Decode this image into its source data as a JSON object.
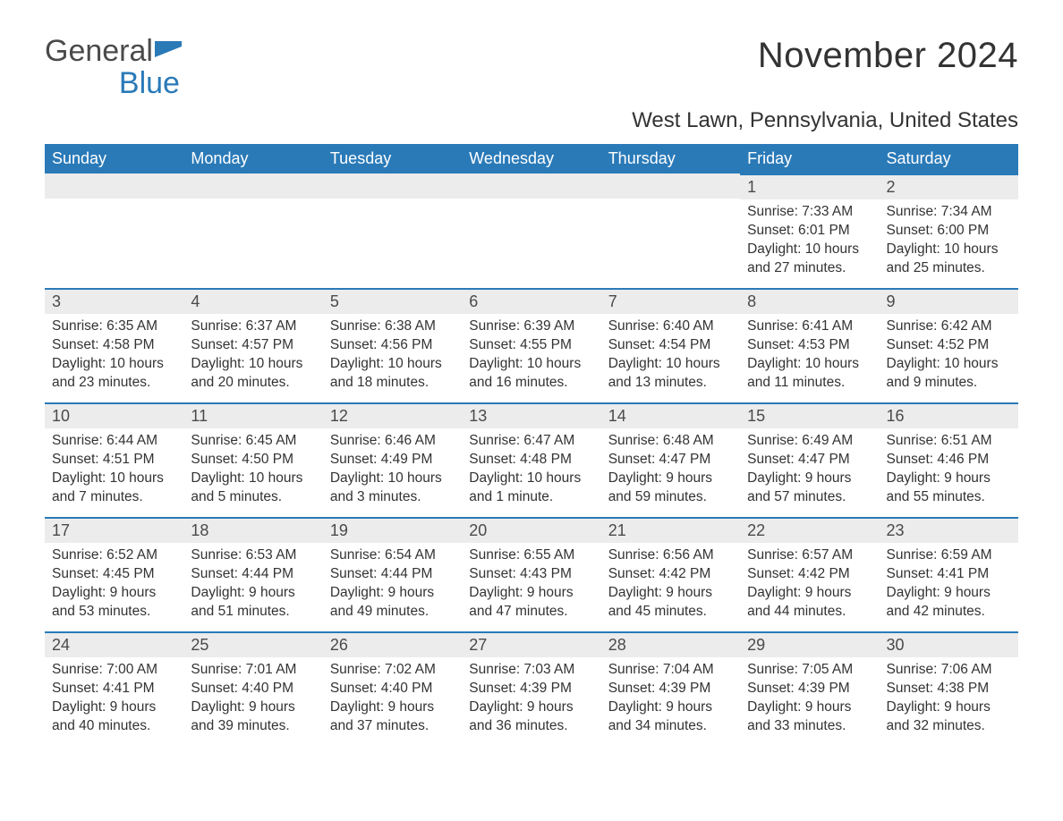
{
  "brand": {
    "part1": "General",
    "part2": "Blue",
    "icon_color": "#2a7ab8"
  },
  "title": "November 2024",
  "location": "West Lawn, Pennsylvania, United States",
  "colors": {
    "header_bg": "#2a7ab8",
    "header_text": "#ffffff",
    "daynum_bg": "#ececec",
    "day_border": "#2a7ab8",
    "body_text": "#333333",
    "logo_gray": "#4a4a4a",
    "logo_blue": "#2a7ab8",
    "page_bg": "#ffffff"
  },
  "weekdays": [
    "Sunday",
    "Monday",
    "Tuesday",
    "Wednesday",
    "Thursday",
    "Friday",
    "Saturday"
  ],
  "weeks": [
    [
      null,
      null,
      null,
      null,
      null,
      {
        "n": "1",
        "sunrise": "7:33 AM",
        "sunset": "6:01 PM",
        "daylight": "10 hours and 27 minutes."
      },
      {
        "n": "2",
        "sunrise": "7:34 AM",
        "sunset": "6:00 PM",
        "daylight": "10 hours and 25 minutes."
      }
    ],
    [
      {
        "n": "3",
        "sunrise": "6:35 AM",
        "sunset": "4:58 PM",
        "daylight": "10 hours and 23 minutes."
      },
      {
        "n": "4",
        "sunrise": "6:37 AM",
        "sunset": "4:57 PM",
        "daylight": "10 hours and 20 minutes."
      },
      {
        "n": "5",
        "sunrise": "6:38 AM",
        "sunset": "4:56 PM",
        "daylight": "10 hours and 18 minutes."
      },
      {
        "n": "6",
        "sunrise": "6:39 AM",
        "sunset": "4:55 PM",
        "daylight": "10 hours and 16 minutes."
      },
      {
        "n": "7",
        "sunrise": "6:40 AM",
        "sunset": "4:54 PM",
        "daylight": "10 hours and 13 minutes."
      },
      {
        "n": "8",
        "sunrise": "6:41 AM",
        "sunset": "4:53 PM",
        "daylight": "10 hours and 11 minutes."
      },
      {
        "n": "9",
        "sunrise": "6:42 AM",
        "sunset": "4:52 PM",
        "daylight": "10 hours and 9 minutes."
      }
    ],
    [
      {
        "n": "10",
        "sunrise": "6:44 AM",
        "sunset": "4:51 PM",
        "daylight": "10 hours and 7 minutes."
      },
      {
        "n": "11",
        "sunrise": "6:45 AM",
        "sunset": "4:50 PM",
        "daylight": "10 hours and 5 minutes."
      },
      {
        "n": "12",
        "sunrise": "6:46 AM",
        "sunset": "4:49 PM",
        "daylight": "10 hours and 3 minutes."
      },
      {
        "n": "13",
        "sunrise": "6:47 AM",
        "sunset": "4:48 PM",
        "daylight": "10 hours and 1 minute."
      },
      {
        "n": "14",
        "sunrise": "6:48 AM",
        "sunset": "4:47 PM",
        "daylight": "9 hours and 59 minutes."
      },
      {
        "n": "15",
        "sunrise": "6:49 AM",
        "sunset": "4:47 PM",
        "daylight": "9 hours and 57 minutes."
      },
      {
        "n": "16",
        "sunrise": "6:51 AM",
        "sunset": "4:46 PM",
        "daylight": "9 hours and 55 minutes."
      }
    ],
    [
      {
        "n": "17",
        "sunrise": "6:52 AM",
        "sunset": "4:45 PM",
        "daylight": "9 hours and 53 minutes."
      },
      {
        "n": "18",
        "sunrise": "6:53 AM",
        "sunset": "4:44 PM",
        "daylight": "9 hours and 51 minutes."
      },
      {
        "n": "19",
        "sunrise": "6:54 AM",
        "sunset": "4:44 PM",
        "daylight": "9 hours and 49 minutes."
      },
      {
        "n": "20",
        "sunrise": "6:55 AM",
        "sunset": "4:43 PM",
        "daylight": "9 hours and 47 minutes."
      },
      {
        "n": "21",
        "sunrise": "6:56 AM",
        "sunset": "4:42 PM",
        "daylight": "9 hours and 45 minutes."
      },
      {
        "n": "22",
        "sunrise": "6:57 AM",
        "sunset": "4:42 PM",
        "daylight": "9 hours and 44 minutes."
      },
      {
        "n": "23",
        "sunrise": "6:59 AM",
        "sunset": "4:41 PM",
        "daylight": "9 hours and 42 minutes."
      }
    ],
    [
      {
        "n": "24",
        "sunrise": "7:00 AM",
        "sunset": "4:41 PM",
        "daylight": "9 hours and 40 minutes."
      },
      {
        "n": "25",
        "sunrise": "7:01 AM",
        "sunset": "4:40 PM",
        "daylight": "9 hours and 39 minutes."
      },
      {
        "n": "26",
        "sunrise": "7:02 AM",
        "sunset": "4:40 PM",
        "daylight": "9 hours and 37 minutes."
      },
      {
        "n": "27",
        "sunrise": "7:03 AM",
        "sunset": "4:39 PM",
        "daylight": "9 hours and 36 minutes."
      },
      {
        "n": "28",
        "sunrise": "7:04 AM",
        "sunset": "4:39 PM",
        "daylight": "9 hours and 34 minutes."
      },
      {
        "n": "29",
        "sunrise": "7:05 AM",
        "sunset": "4:39 PM",
        "daylight": "9 hours and 33 minutes."
      },
      {
        "n": "30",
        "sunrise": "7:06 AM",
        "sunset": "4:38 PM",
        "daylight": "9 hours and 32 minutes."
      }
    ]
  ],
  "labels": {
    "sunrise": "Sunrise: ",
    "sunset": "Sunset: ",
    "daylight": "Daylight: "
  }
}
